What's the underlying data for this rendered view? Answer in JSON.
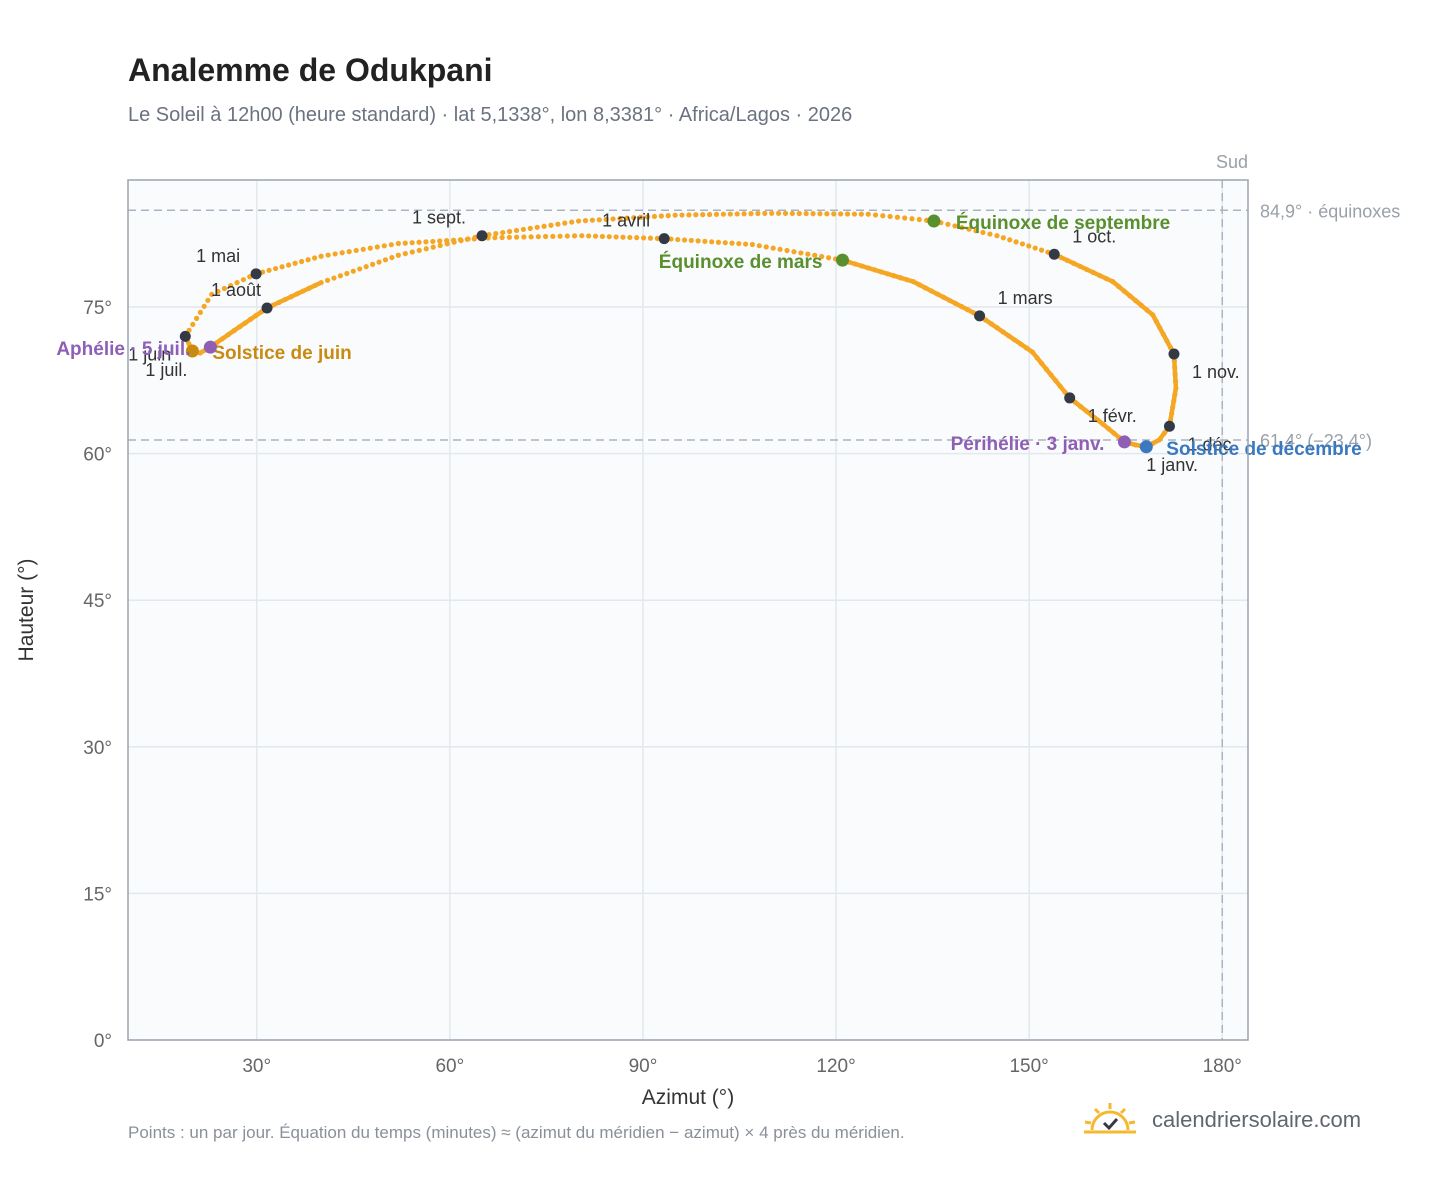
{
  "page": {
    "title": "Analemme de Odukpani",
    "subtitle": "Le Soleil à 12h00 (heure standard) · lat 5,1338°, lon 8,3381° · Africa/Lagos · 2026",
    "footnote": "Points : un par jour. Équation du temps (minutes) ≈ (azimut du méridien − azimut) × 4 près du méridien.",
    "brand": "calendriersolaire.com"
  },
  "chart_data": {
    "type": "scatter",
    "xlabel": "Azimut (°)",
    "ylabel": "Hauteur (°)",
    "xlim": [
      10,
      184
    ],
    "ylim": [
      0,
      88
    ],
    "xticks": [
      30,
      60,
      90,
      120,
      150,
      180
    ],
    "yticks": [
      0,
      15,
      30,
      45,
      60,
      75
    ],
    "xtick_labels": [
      "30°",
      "60°",
      "90°",
      "120°",
      "150°",
      "180°"
    ],
    "ytick_labels": [
      "0°",
      "15°",
      "30°",
      "45°",
      "60°",
      "75°"
    ],
    "grid": true,
    "reference_lines": [
      {
        "axis": "x",
        "value": 180,
        "label": "Sud"
      },
      {
        "axis": "y",
        "value": 84.9,
        "label": "84,9° · équinoxes"
      },
      {
        "axis": "y",
        "value": 61.4,
        "label": "61,4° (−23,4°)"
      }
    ],
    "colors": {
      "path": "#f5a623",
      "month_marker": "#333a45",
      "equinox": "#5a8f2e",
      "solstice_june": "#c98a12",
      "solstice_december": "#3a78c0",
      "apsis": "#8e5fb5",
      "reference": "#a9b4c0"
    },
    "path_points": [
      [
        168.2,
        60.7
      ],
      [
        166.5,
        60.9
      ],
      [
        164.8,
        61.2
      ],
      [
        161.5,
        63.0
      ],
      [
        156.3,
        65.7
      ],
      [
        150.5,
        70.4
      ],
      [
        142.3,
        74.1
      ],
      [
        132.0,
        77.6
      ],
      [
        121.0,
        79.8
      ],
      [
        107.0,
        81.4
      ],
      [
        93.3,
        82.0
      ],
      [
        80.5,
        82.3
      ],
      [
        67.0,
        82.1
      ],
      [
        52.0,
        81.5
      ],
      [
        40.0,
        80.2
      ],
      [
        29.9,
        78.4
      ],
      [
        23.0,
        76.3
      ],
      [
        18.9,
        72.0
      ],
      [
        20.0,
        70.5
      ],
      [
        21.2,
        70.3
      ],
      [
        22.8,
        70.9
      ],
      [
        26.5,
        72.6
      ],
      [
        31.6,
        74.9
      ],
      [
        40.0,
        77.5
      ],
      [
        52.0,
        80.3
      ],
      [
        65.0,
        82.3
      ],
      [
        80.0,
        83.8
      ],
      [
        95.0,
        84.4
      ],
      [
        110.0,
        84.6
      ],
      [
        125.0,
        84.5
      ],
      [
        135.2,
        83.8
      ],
      [
        145.0,
        82.3
      ],
      [
        153.9,
        80.4
      ],
      [
        163.0,
        77.6
      ],
      [
        169.2,
        74.2
      ],
      [
        172.5,
        70.2
      ],
      [
        172.8,
        66.7
      ],
      [
        171.8,
        62.8
      ],
      [
        170.2,
        61.4
      ],
      [
        168.2,
        60.7
      ]
    ],
    "solid_path_ranges": [
      [
        0,
        8
      ],
      [
        17,
        23
      ],
      [
        32,
        39
      ]
    ],
    "month_markers": [
      {
        "label": "1 janv.",
        "x": 168.2,
        "y": 60.7
      },
      {
        "label": "1 févr.",
        "x": 156.3,
        "y": 65.7
      },
      {
        "label": "1 mars",
        "x": 142.3,
        "y": 74.1
      },
      {
        "label": "1 avril",
        "x": 93.3,
        "y": 82.0
      },
      {
        "label": "1 mai",
        "x": 29.9,
        "y": 78.4
      },
      {
        "label": "1 juin",
        "x": 18.9,
        "y": 72.0
      },
      {
        "label": "1 juil.",
        "x": 20.0,
        "y": 70.5
      },
      {
        "label": "1 août",
        "x": 31.6,
        "y": 74.9
      },
      {
        "label": "1 sept.",
        "x": 65.0,
        "y": 82.3
      },
      {
        "label": "1 oct.",
        "x": 153.9,
        "y": 80.4
      },
      {
        "label": "1 nov.",
        "x": 172.5,
        "y": 70.2
      },
      {
        "label": "1 déc.",
        "x": 171.8,
        "y": 62.8
      }
    ],
    "events": [
      {
        "label": "Équinoxe de mars",
        "x": 121.0,
        "y": 79.8,
        "color_key": "equinox"
      },
      {
        "label": "Équinoxe de septembre",
        "x": 135.2,
        "y": 83.8,
        "color_key": "equinox"
      },
      {
        "label": "Solstice de juin",
        "x": 20.0,
        "y": 70.5,
        "color_key": "solstice_june"
      },
      {
        "label": "Solstice de décembre",
        "x": 168.2,
        "y": 60.7,
        "color_key": "solstice_december"
      },
      {
        "label": "Aphélie · 5 juil.",
        "x": 22.8,
        "y": 70.9,
        "color_key": "apsis"
      },
      {
        "label": "Périhélie · 3 janv.",
        "x": 164.8,
        "y": 61.2,
        "color_key": "apsis"
      }
    ]
  }
}
